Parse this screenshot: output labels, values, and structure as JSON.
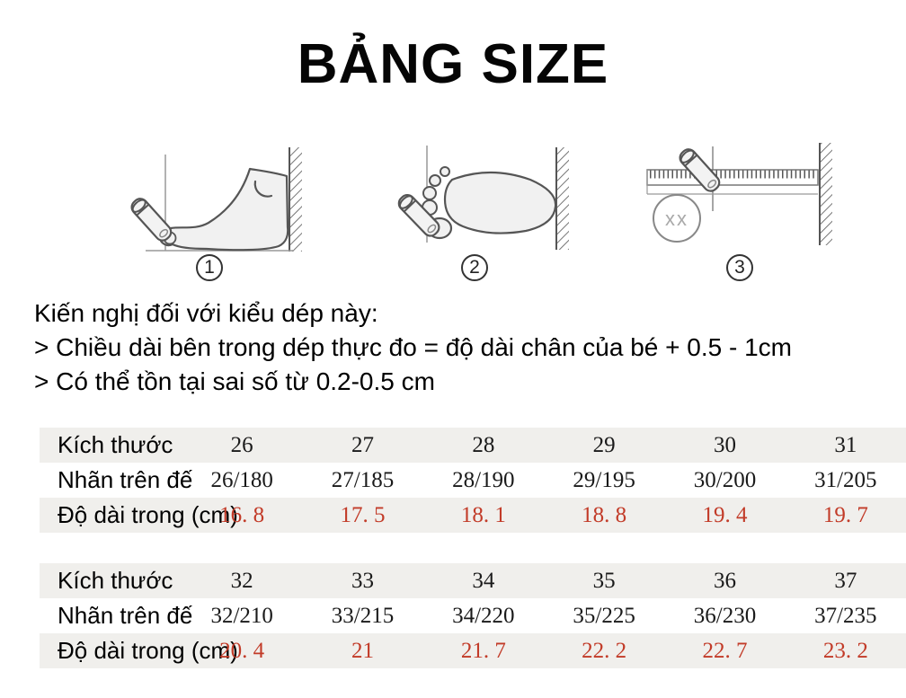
{
  "title": "BẢNG SIZE",
  "figures": [
    {
      "number": "1",
      "name": "measure-foot-side"
    },
    {
      "number": "2",
      "name": "measure-foot-top"
    },
    {
      "number": "3",
      "name": "read-ruler",
      "annotation": "xx"
    }
  ],
  "instructions": {
    "heading": "Kiến nghị đối với kiểu dép này:",
    "lines": [
      "> Chiều dài bên trong dép thực đo = độ dài chân của bé + 0.5 - 1cm",
      "> Có thể tồn tại sai số từ 0.2-0.5 cm"
    ]
  },
  "colors": {
    "accent_red": "#c23b28",
    "row_gray": "#f0efec"
  },
  "tables": [
    {
      "rows": [
        {
          "label": "Kích thước",
          "style": "gray",
          "values": [
            "26",
            "27",
            "28",
            "29",
            "30",
            "31"
          ]
        },
        {
          "label": "Nhãn trên đế",
          "style": "white",
          "values": [
            "26/180",
            "27/185",
            "28/190",
            "29/195",
            "30/200",
            "31/205"
          ]
        },
        {
          "label": "Độ dài trong (cm)",
          "style": "gray-red",
          "values": [
            "16. 8",
            "17. 5",
            "18. 1",
            "18. 8",
            "19. 4",
            "19. 7"
          ]
        }
      ]
    },
    {
      "rows": [
        {
          "label": "Kích thước",
          "style": "gray",
          "values": [
            "32",
            "33",
            "34",
            "35",
            "36",
            "37"
          ]
        },
        {
          "label": "Nhãn trên đế",
          "style": "white",
          "values": [
            "32/210",
            "33/215",
            "34/220",
            "35/225",
            "36/230",
            "37/235"
          ]
        },
        {
          "label": "Độ dài trong (cm)",
          "style": "gray-red",
          "values": [
            "20. 4",
            "21",
            "21. 7",
            "22. 2",
            "22. 7",
            "23. 2"
          ]
        }
      ]
    }
  ]
}
